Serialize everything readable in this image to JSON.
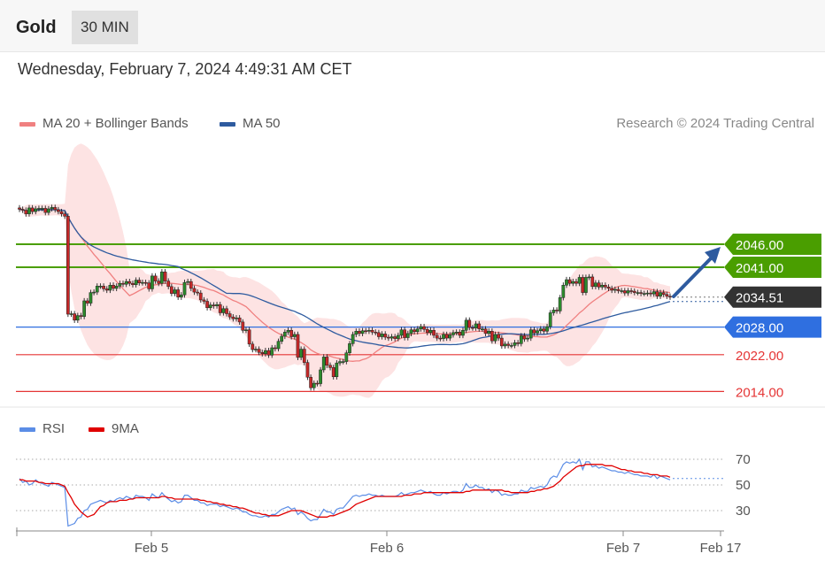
{
  "header": {
    "instrument": "Gold",
    "timeframe": "30 MIN"
  },
  "timestamp": "Wednesday, February 7, 2024 4:49:31 AM CET",
  "legend": {
    "ma20": {
      "label": "MA 20 + Bollinger Bands",
      "color": "#f08080"
    },
    "ma50": {
      "label": "MA 50",
      "color": "#2e5b9f"
    }
  },
  "copyright": "Research © 2024 Trading Central",
  "rsi_legend": {
    "rsi": {
      "label": "RSI",
      "color": "#5b8de6"
    },
    "ma9": {
      "label": "9MA",
      "color": "#e00000"
    }
  },
  "chart_data": [
    {
      "type": "candlestick",
      "x_ticks": [
        "Feb 5",
        "Feb 6",
        "Feb 7",
        "Feb 17"
      ],
      "ylim": [
        2012,
        2072
      ],
      "levels": [
        {
          "value": 2046.0,
          "label": "2046.00",
          "kind": "resistance",
          "color": "#4a9e00"
        },
        {
          "value": 2041.0,
          "label": "2041.00",
          "kind": "resistance",
          "color": "#4a9e00"
        },
        {
          "value": 2034.51,
          "label": "2034.51",
          "kind": "last-price",
          "color": "#333333"
        },
        {
          "value": 2028.0,
          "label": "2028.00",
          "kind": "pivot",
          "color": "#2f6fe0"
        },
        {
          "value": 2022.0,
          "label": "2022.00",
          "kind": "support",
          "color": "#e53535"
        },
        {
          "value": 2014.0,
          "label": "2014.00",
          "kind": "support",
          "color": "#e53535"
        }
      ],
      "closes": [
        2053.6,
        2053.4,
        2052.6,
        2053.9,
        2053.1,
        2053.7,
        2053.8,
        2053.8,
        2052.9,
        2053.7,
        2054.0,
        2053.5,
        2053.1,
        2052.6,
        2052.1,
        2030.8,
        2030.9,
        2029.5,
        2030.5,
        2030.3,
        2033.7,
        2033.2,
        2035.5,
        2035.6,
        2036.9,
        2036.9,
        2036.3,
        2036.0,
        2037.1,
        2036.4,
        2036.9,
        2037.5,
        2037.3,
        2037.9,
        2037.5,
        2037.2,
        2038.2,
        2037.6,
        2037.7,
        2037.6,
        2036.3,
        2039.1,
        2038.0,
        2037.5,
        2040.0,
        2038.0,
        2036.8,
        2035.3,
        2036.1,
        2034.5,
        2035.0,
        2037.7,
        2037.9,
        2036.4,
        2035.6,
        2035.4,
        2033.9,
        2033.6,
        2032.2,
        2032.8,
        2032.6,
        2032.9,
        2031.1,
        2032.0,
        2030.9,
        2030.2,
        2029.8,
        2030.0,
        2029.1,
        2027.3,
        2027.4,
        2024.3,
        2023.1,
        2023.2,
        2022.5,
        2022.2,
        2022.9,
        2021.9,
        2023.5,
        2023.3,
        2024.9,
        2026.0,
        2026.9,
        2027.3,
        2025.9,
        2026.4,
        2021.4,
        2023.2,
        2020.3,
        2017.1,
        2014.8,
        2015.8,
        2015.7,
        2018.7,
        2021.5,
        2019.7,
        2019.2,
        2017.2,
        2020.2,
        2020.5,
        2020.5,
        2022.4,
        2024.4,
        2026.4,
        2027.1,
        2026.6,
        2027.2,
        2027.1,
        2027.3,
        2026.9,
        2026.8,
        2025.9,
        2026.5,
        2025.8,
        2025.6,
        2025.9,
        2025.5,
        2026.2,
        2027.4,
        2025.7,
        2026.6,
        2027.4,
        2027.0,
        2027.6,
        2028.1,
        2027.5,
        2026.8,
        2027.3,
        2026.2,
        2025.6,
        2025.5,
        2026.4,
        2025.6,
        2026.3,
        2026.8,
        2026.9,
        2026.2,
        2027.3,
        2029.5,
        2027.9,
        2027.8,
        2028.7,
        2027.6,
        2027.6,
        2026.6,
        2027.1,
        2025.0,
        2026.4,
        2025.6,
        2023.9,
        2024.3,
        2024.0,
        2024.0,
        2024.6,
        2024.4,
        2026.1,
        2025.4,
        2025.6,
        2027.4,
        2026.7,
        2027.2,
        2027.6,
        2027.1,
        2028.1,
        2031.1,
        2031.7,
        2031.5,
        2034.4,
        2037.1,
        2038.3,
        2037.5,
        2037.9,
        2037.5,
        2038.8,
        2035.5,
        2038.8,
        2038.9,
        2036.8,
        2037.6,
        2036.7,
        2037.1,
        2036.7,
        2036.4,
        2036.0,
        2036.2,
        2035.9,
        2035.9,
        2035.4,
        2035.9,
        2035.8,
        2035.5,
        2035.5,
        2035.3,
        2035.3,
        2035.4,
        2035.2,
        2035.7,
        2034.7,
        2035.5,
        2035.1,
        2034.7,
        2034.5
      ]
    },
    {
      "type": "line",
      "title": "RSI",
      "series": [
        {
          "name": "RSI"
        },
        {
          "name": "9MA"
        }
      ],
      "yticks": [
        70,
        50,
        30
      ],
      "ylim": [
        15,
        80
      ],
      "rsi": [
        55,
        52,
        53,
        50,
        51,
        54,
        52,
        51,
        50,
        49,
        52,
        51,
        50,
        49,
        48,
        18,
        19,
        20,
        24,
        25,
        30,
        31,
        35,
        36,
        37,
        38,
        37,
        36,
        38,
        37,
        39,
        40,
        39,
        41,
        40,
        39,
        42,
        41,
        41,
        40,
        38,
        43,
        41,
        40,
        44,
        41,
        39,
        37,
        38,
        36,
        37,
        42,
        42,
        40,
        38,
        38,
        36,
        36,
        34,
        35,
        35,
        35,
        33,
        34,
        33,
        32,
        31,
        32,
        31,
        29,
        29,
        27,
        26,
        26,
        25,
        25,
        26,
        25,
        27,
        27,
        29,
        31,
        32,
        33,
        31,
        32,
        27,
        29,
        27,
        24,
        22,
        23,
        23,
        27,
        31,
        29,
        29,
        27,
        31,
        32,
        32,
        35,
        38,
        41,
        42,
        41,
        42,
        42,
        43,
        42,
        42,
        41,
        42,
        41,
        41,
        41,
        41,
        42,
        44,
        42,
        43,
        44,
        44,
        45,
        46,
        45,
        44,
        45,
        43,
        42,
        42,
        44,
        43,
        44,
        45,
        45,
        44,
        46,
        51,
        48,
        48,
        50,
        48,
        48,
        46,
        47,
        44,
        46,
        45,
        42,
        43,
        42,
        42,
        43,
        43,
        46,
        45,
        45,
        48,
        47,
        48,
        49,
        48,
        50,
        55,
        57,
        56,
        61,
        66,
        68,
        67,
        68,
        67,
        70,
        62,
        68,
        68,
        64,
        65,
        63,
        64,
        63,
        62,
        61,
        61,
        60,
        60,
        59,
        60,
        59,
        58,
        58,
        57,
        57,
        57,
        56,
        58,
        55,
        57,
        56,
        55,
        54
      ],
      "ma9": [
        54,
        54,
        53,
        53,
        53,
        53,
        52,
        52,
        51,
        51,
        51,
        51,
        51,
        50,
        49,
        44,
        40,
        35,
        32,
        29,
        27,
        25,
        26,
        27,
        30,
        33,
        34,
        36,
        37,
        37,
        37,
        38,
        38,
        38,
        39,
        39,
        40,
        40,
        40,
        40,
        40,
        40,
        40,
        40,
        41,
        41,
        40,
        40,
        39,
        39,
        39,
        39,
        39,
        39,
        39,
        39,
        38,
        38,
        37,
        37,
        36,
        36,
        35,
        35,
        34,
        34,
        33,
        33,
        32,
        32,
        31,
        30,
        29,
        28,
        28,
        27,
        27,
        26,
        26,
        26,
        26,
        27,
        28,
        29,
        30,
        30,
        30,
        30,
        29,
        28,
        27,
        26,
        25,
        25,
        25,
        25,
        26,
        26,
        27,
        28,
        29,
        30,
        31,
        33,
        35,
        36,
        37,
        38,
        39,
        40,
        41,
        41,
        41,
        41,
        41,
        41,
        41,
        41,
        41,
        42,
        42,
        42,
        43,
        43,
        43,
        44,
        44,
        44,
        44,
        44,
        44,
        44,
        44,
        44,
        44,
        44,
        44,
        44,
        45,
        45,
        46,
        46,
        46,
        46,
        46,
        46,
        46,
        46,
        46,
        46,
        45,
        45,
        44,
        44,
        44,
        44,
        44,
        44,
        45,
        45,
        46,
        46,
        47,
        47,
        48,
        49,
        51,
        53,
        56,
        58,
        60,
        62,
        64,
        65,
        65,
        66,
        66,
        66,
        66,
        66,
        66,
        65,
        65,
        65,
        64,
        63,
        62,
        62,
        61,
        61,
        60,
        60,
        60,
        59,
        59,
        58,
        58,
        58,
        57,
        57,
        57,
        56
      ]
    }
  ]
}
